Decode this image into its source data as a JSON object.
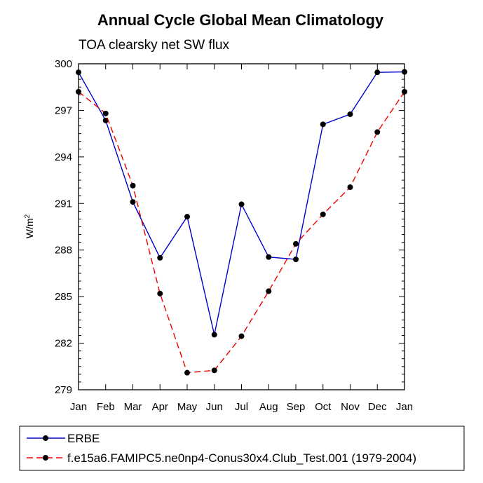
{
  "chart_data": {
    "type": "line",
    "title": "Annual Cycle Global Mean Climatology",
    "subtitle": "TOA clearsky net SW flux",
    "xlabel": "",
    "ylabel": "W/m",
    "ylabel_superscript": "2",
    "categories": [
      "Jan",
      "Feb",
      "Mar",
      "Apr",
      "May",
      "Jun",
      "Jul",
      "Aug",
      "Sep",
      "Oct",
      "Nov",
      "Dec",
      "Jan"
    ],
    "ylim": [
      279,
      300
    ],
    "yticks": [
      "300",
      "297",
      "294",
      "291",
      "288",
      "285",
      "282",
      "279"
    ],
    "grid": false,
    "legend_placement": "bottom",
    "series": [
      {
        "name": "ERBE",
        "color": "#0000cc",
        "style": "solid",
        "values": [
          299.45,
          296.35,
          291.1,
          287.5,
          290.15,
          282.55,
          290.95,
          287.55,
          287.4,
          296.1,
          296.75,
          299.45,
          299.48
        ]
      },
      {
        "name": "f.e15a6.FAMIPC5.ne0np4-Conus30x4.Club_Test.001 (1979-2004)",
        "color": "#ee0000",
        "style": "dashed",
        "values": [
          298.2,
          296.8,
          292.15,
          285.2,
          280.1,
          280.25,
          282.45,
          285.35,
          288.4,
          290.3,
          292.05,
          295.6,
          298.2
        ]
      }
    ]
  }
}
